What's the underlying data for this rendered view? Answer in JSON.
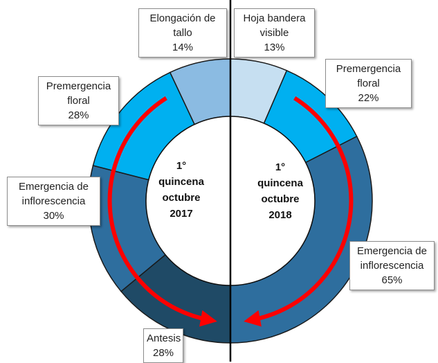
{
  "chart_data": [
    {
      "type": "donut",
      "center_label": [
        "1°",
        "quincena",
        "octubre",
        "2017"
      ],
      "categories": [
        "Elongación de tallo",
        "Premergencia floral",
        "Emergencia de inflorescencia",
        "Antesis"
      ],
      "values": [
        14,
        28,
        30,
        28
      ],
      "value_labels": [
        "14%",
        "28%",
        "30%",
        "28%"
      ],
      "colors": [
        "#8bbbe2",
        "#00b0f0",
        "#2e6e9e",
        "#1f4a66"
      ]
    },
    {
      "type": "donut",
      "center_label": [
        "1°",
        "quincena",
        "octubre",
        "2018"
      ],
      "categories": [
        "Hoja bandera visible",
        "Premergencia floral",
        "Emergencia de inflorescencia"
      ],
      "values": [
        13,
        22,
        65
      ],
      "value_labels": [
        "13%",
        "22%",
        "65%"
      ],
      "colors": [
        "#c6dff1",
        "#00b0f0",
        "#2e6e9e"
      ]
    }
  ]
}
